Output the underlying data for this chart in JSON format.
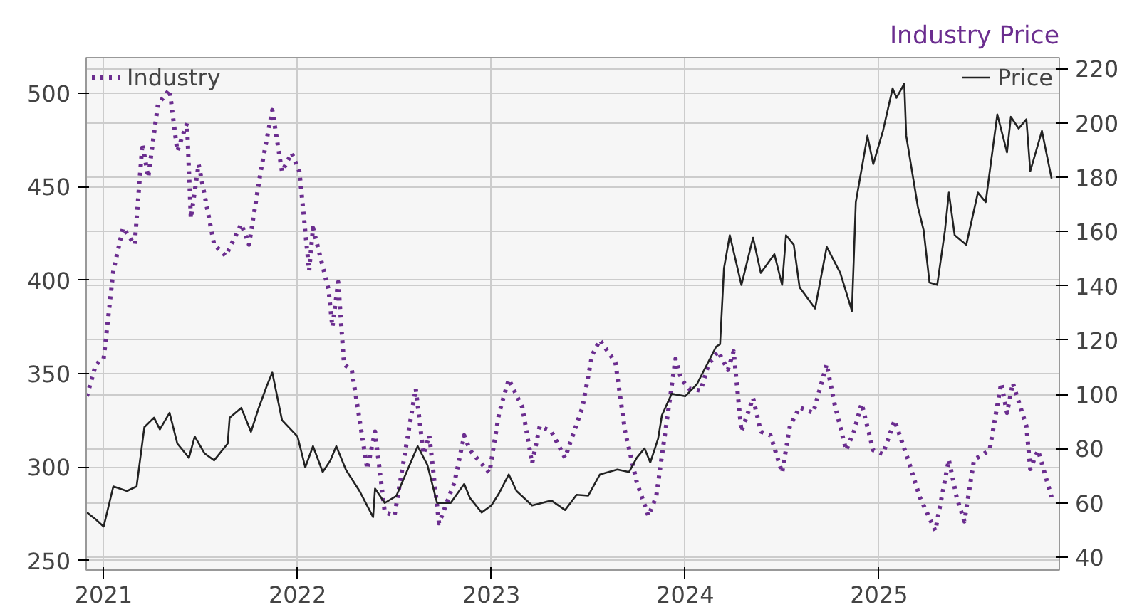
{
  "chart_data": {
    "type": "line",
    "title": "Industry Price",
    "xlim": [
      2020.91,
      2025.93
    ],
    "xticks": [
      2021,
      2022,
      2023,
      2024,
      2025
    ],
    "ylim": [
      245,
      519
    ],
    "yticks": [
      250,
      300,
      350,
      400,
      450,
      500
    ],
    "y2lim": [
      35.3,
      224
    ],
    "y2ticks": [
      40,
      60,
      80,
      100,
      120,
      140,
      160,
      180,
      200,
      220
    ],
    "grid": true,
    "legend": "top",
    "series": [
      {
        "name": "Industry",
        "color": "#6b2d8f",
        "line_style": "dotted",
        "axis": "y",
        "x": [
          2020.914,
          2020.96,
          2021.0,
          2021.05,
          2021.1,
          2021.16,
          2021.2,
          2021.23,
          2021.28,
          2021.34,
          2021.38,
          2021.43,
          2021.45,
          2021.49,
          2021.57,
          2021.63,
          2021.71,
          2021.75,
          2021.81,
          2021.87,
          2021.92,
          2021.97,
          2022.01,
          2022.06,
          2022.08,
          2022.16,
          2022.18,
          2022.21,
          2022.24,
          2022.28,
          2022.36,
          2022.4,
          2022.45,
          2022.5,
          2022.61,
          2022.65,
          2022.68,
          2022.73,
          2022.81,
          2022.86,
          2022.89,
          2022.99,
          2023.04,
          2023.09,
          2023.16,
          2023.21,
          2023.25,
          2023.31,
          2023.38,
          2023.47,
          2023.52,
          2023.56,
          2023.64,
          2023.69,
          2023.75,
          2023.81,
          2023.85,
          2023.95,
          2023.98,
          2024.02,
          2024.08,
          2024.12,
          2024.17,
          2024.22,
          2024.25,
          2024.29,
          2024.35,
          2024.39,
          2024.44,
          2024.5,
          2024.54,
          2024.59,
          2024.66,
          2024.73,
          2024.77,
          2024.83,
          2024.87,
          2024.91,
          2024.97,
          2025.02,
          2025.08,
          2025.15,
          2025.21,
          2025.29,
          2025.36,
          2025.4,
          2025.44,
          2025.49,
          2025.57,
          2025.63,
          2025.66,
          2025.69,
          2025.76,
          2025.78,
          2025.82,
          2025.89
        ],
        "values": [
          338,
          355,
          358,
          405,
          428,
          419,
          473,
          455,
          494,
          502,
          469,
          484,
          433,
          462,
          419,
          413,
          430,
          419,
          458,
          491,
          458,
          468,
          458,
          405,
          428,
          395,
          375,
          399,
          355,
          352,
          299,
          319,
          276,
          274,
          342,
          307,
          317,
          270,
          292,
          317,
          309,
          297,
          329,
          347,
          332,
          302,
          322,
          319,
          305,
          332,
          360,
          368,
          356,
          319,
          292,
          274,
          284,
          358,
          347,
          342,
          341,
          355,
          362,
          352,
          362,
          319,
          337,
          319,
          317,
          297,
          322,
          332,
          329,
          355,
          334,
          309,
          319,
          334,
          309,
          307,
          325,
          304,
          284,
          266,
          304,
          284,
          271,
          304,
          309,
          345,
          329,
          345,
          322,
          299,
          309,
          284
        ]
      },
      {
        "name": "Price",
        "color": "#222222",
        "line_style": "solid",
        "axis": "y2",
        "x": [
          2020.914,
          2020.96,
          2021.0,
          2021.05,
          2021.12,
          2021.17,
          2021.21,
          2021.26,
          2021.29,
          2021.34,
          2021.38,
          2021.44,
          2021.47,
          2021.52,
          2021.57,
          2021.64,
          2021.65,
          2021.71,
          2021.76,
          2021.8,
          2021.84,
          2021.87,
          2021.92,
          2022.0,
          2022.04,
          2022.08,
          2022.13,
          2022.17,
          2022.2,
          2022.25,
          2022.32,
          2022.39,
          2022.4,
          2022.45,
          2022.51,
          2022.62,
          2022.67,
          2022.72,
          2022.79,
          2022.86,
          2022.89,
          2022.95,
          2023.0,
          2023.04,
          2023.09,
          2023.13,
          2023.21,
          2023.31,
          2023.38,
          2023.44,
          2023.5,
          2023.56,
          2023.65,
          2023.71,
          2023.75,
          2023.79,
          2023.82,
          2023.86,
          2023.88,
          2023.93,
          2024.0,
          2024.06,
          2024.16,
          2024.18,
          2024.2,
          2024.23,
          2024.29,
          2024.35,
          2024.39,
          2024.46,
          2024.5,
          2024.52,
          2024.56,
          2024.59,
          2024.67,
          2024.73,
          2024.8,
          2024.86,
          2024.88,
          2024.94,
          2024.97,
          2025.02,
          2025.07,
          2025.09,
          2025.13,
          2025.14,
          2025.2,
          2025.23,
          2025.26,
          2025.3,
          2025.34,
          2025.36,
          2025.39,
          2025.45,
          2025.51,
          2025.55,
          2025.61,
          2025.66,
          2025.68,
          2025.72,
          2025.76,
          2025.78,
          2025.84,
          2025.89
        ],
        "values": [
          56.5,
          53.9,
          51.3,
          66.1,
          64.4,
          66.1,
          87.9,
          91.4,
          87.1,
          93.2,
          81.9,
          76.6,
          84.5,
          78.3,
          75.7,
          81.9,
          91.4,
          95,
          86.2,
          95,
          102.8,
          108,
          90.5,
          84.5,
          73.1,
          80.9,
          71.4,
          75.7,
          80.9,
          72.2,
          64.4,
          54.8,
          65.3,
          60,
          62.6,
          80.9,
          74,
          60,
          60,
          67,
          61.8,
          56.5,
          59.1,
          63.6,
          70.5,
          64.4,
          59.1,
          60.9,
          57.4,
          63,
          62.7,
          70.5,
          72.3,
          71.4,
          76.6,
          80.1,
          74.9,
          83.6,
          92.3,
          100.2,
          99.3,
          103.7,
          117.6,
          118.5,
          146.4,
          158.6,
          140.3,
          157.7,
          144.7,
          151.6,
          140.3,
          158.6,
          155.1,
          139.4,
          131.6,
          154.3,
          144.7,
          130.7,
          170.8,
          195.2,
          184.8,
          197,
          212.7,
          209.2,
          214.4,
          195.2,
          169.1,
          160.4,
          141.2,
          140.3,
          160.4,
          174.3,
          158.6,
          155.1,
          174.3,
          170.8,
          203.1,
          189.1,
          202.2,
          197.9,
          201.3,
          182.2,
          197,
          179.5
        ]
      }
    ]
  }
}
